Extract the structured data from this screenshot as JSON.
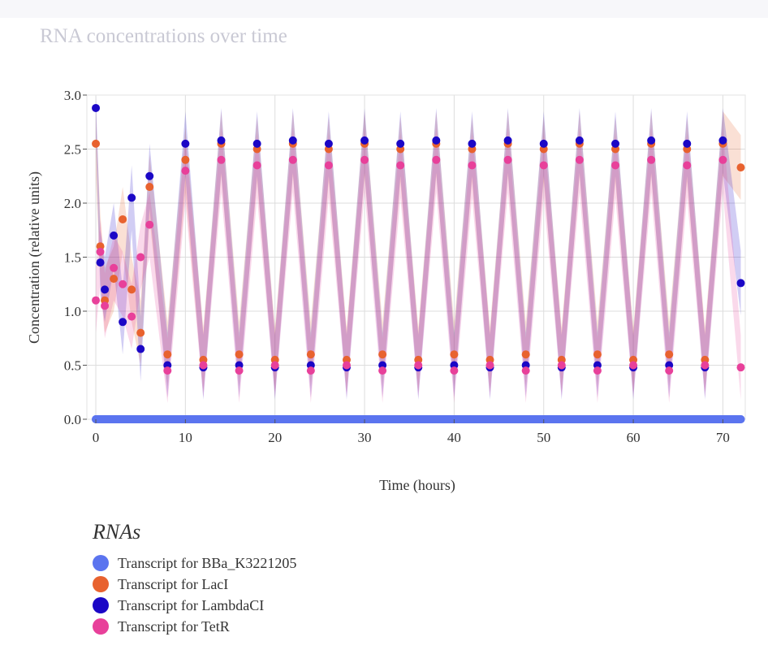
{
  "chart_data": {
    "type": "scatter",
    "title": "RNA concentrations over time",
    "xlabel": "Time (hours)",
    "ylabel": "Concentration (relative units)",
    "xlim": [
      -1,
      72.5
    ],
    "ylim": [
      0,
      3.0
    ],
    "xticks": [
      0,
      10,
      20,
      30,
      40,
      50,
      60,
      70
    ],
    "yticks": [
      0.0,
      0.5,
      1.0,
      1.5,
      2.0,
      2.5,
      3.0
    ],
    "ytick_labels": [
      "0.0",
      "0.5",
      "1.0",
      "1.5",
      "2.0",
      "2.5",
      "3.0"
    ],
    "grid": true,
    "error_bands": true,
    "legend_title": "RNAs",
    "legend_position": "bottom-left",
    "series": [
      {
        "name": "Transcript for BBa_K3221205",
        "color": "#5b74ef",
        "x": [
          0,
          6,
          12,
          18,
          24,
          30,
          36,
          42,
          48,
          54,
          60,
          66,
          72
        ],
        "y": [
          0,
          0,
          0,
          0,
          0,
          0,
          0,
          0,
          0,
          0,
          0,
          0,
          0
        ]
      },
      {
        "name": "Transcript for LacI",
        "color": "#e8622f",
        "x": [
          0,
          0.5,
          1,
          2,
          3,
          4,
          5,
          6,
          8,
          10,
          12,
          14,
          16,
          18,
          20,
          22,
          24,
          26,
          28,
          30,
          32,
          34,
          36,
          38,
          40,
          42,
          44,
          46,
          48,
          50,
          52,
          54,
          56,
          58,
          60,
          62,
          64,
          66,
          68,
          70,
          72
        ],
        "y": [
          2.55,
          1.6,
          1.1,
          1.3,
          1.85,
          1.2,
          0.8,
          2.15,
          0.6,
          2.4,
          0.55,
          2.55,
          0.6,
          2.5,
          0.55,
          2.55,
          0.6,
          2.5,
          0.55,
          2.55,
          0.6,
          2.5,
          0.55,
          2.55,
          0.6,
          2.5,
          0.55,
          2.55,
          0.6,
          2.5,
          0.55,
          2.55,
          0.6,
          2.5,
          0.55,
          2.55,
          0.6,
          2.5,
          0.55,
          2.55,
          2.33
        ]
      },
      {
        "name": "Transcript for LambdaCI",
        "color": "#1b07c6",
        "x": [
          0,
          0.5,
          1,
          2,
          3,
          4,
          5,
          6,
          8,
          10,
          12,
          14,
          16,
          18,
          20,
          22,
          24,
          26,
          28,
          30,
          32,
          34,
          36,
          38,
          40,
          42,
          44,
          46,
          48,
          50,
          52,
          54,
          56,
          58,
          60,
          62,
          64,
          66,
          68,
          70,
          72
        ],
        "y": [
          2.88,
          1.45,
          1.2,
          1.7,
          0.9,
          2.05,
          0.65,
          2.25,
          0.5,
          2.55,
          0.48,
          2.58,
          0.5,
          2.55,
          0.48,
          2.58,
          0.5,
          2.55,
          0.48,
          2.58,
          0.5,
          2.55,
          0.48,
          2.58,
          0.5,
          2.55,
          0.48,
          2.58,
          0.5,
          2.55,
          0.48,
          2.58,
          0.5,
          2.55,
          0.48,
          2.58,
          0.5,
          2.55,
          0.48,
          2.58,
          1.26
        ]
      },
      {
        "name": "Transcript for TetR",
        "color": "#e8409a",
        "x": [
          0,
          0.5,
          1,
          2,
          3,
          4,
          5,
          6,
          8,
          10,
          12,
          14,
          16,
          18,
          20,
          22,
          24,
          26,
          28,
          30,
          32,
          34,
          36,
          38,
          40,
          42,
          44,
          46,
          48,
          50,
          52,
          54,
          56,
          58,
          60,
          62,
          64,
          66,
          68,
          70,
          72
        ],
        "y": [
          1.1,
          1.55,
          1.05,
          1.4,
          1.25,
          0.95,
          1.5,
          1.8,
          0.45,
          2.3,
          0.5,
          2.4,
          0.45,
          2.35,
          0.5,
          2.4,
          0.45,
          2.35,
          0.5,
          2.4,
          0.45,
          2.35,
          0.5,
          2.4,
          0.45,
          2.35,
          0.5,
          2.4,
          0.45,
          2.35,
          0.5,
          2.4,
          0.45,
          2.35,
          0.5,
          2.4,
          0.45,
          2.35,
          0.5,
          2.4,
          0.48
        ]
      }
    ]
  }
}
